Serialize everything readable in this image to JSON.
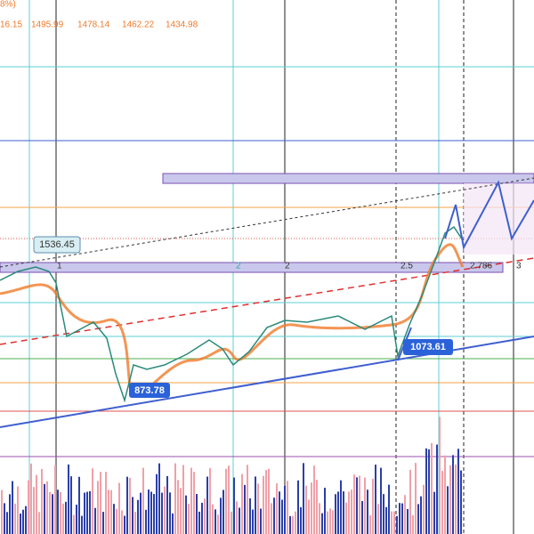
{
  "header": {
    "change": "8%)",
    "values": [
      "16.15",
      "1495.99",
      "1478.14",
      "1462.22",
      "1434.98"
    ]
  },
  "labels": {
    "high": "1536.45",
    "low": "873.78",
    "pivot": "1073.61"
  },
  "levels": [
    "1",
    "2",
    "2",
    "2.5",
    "2.786",
    "3"
  ]
}
